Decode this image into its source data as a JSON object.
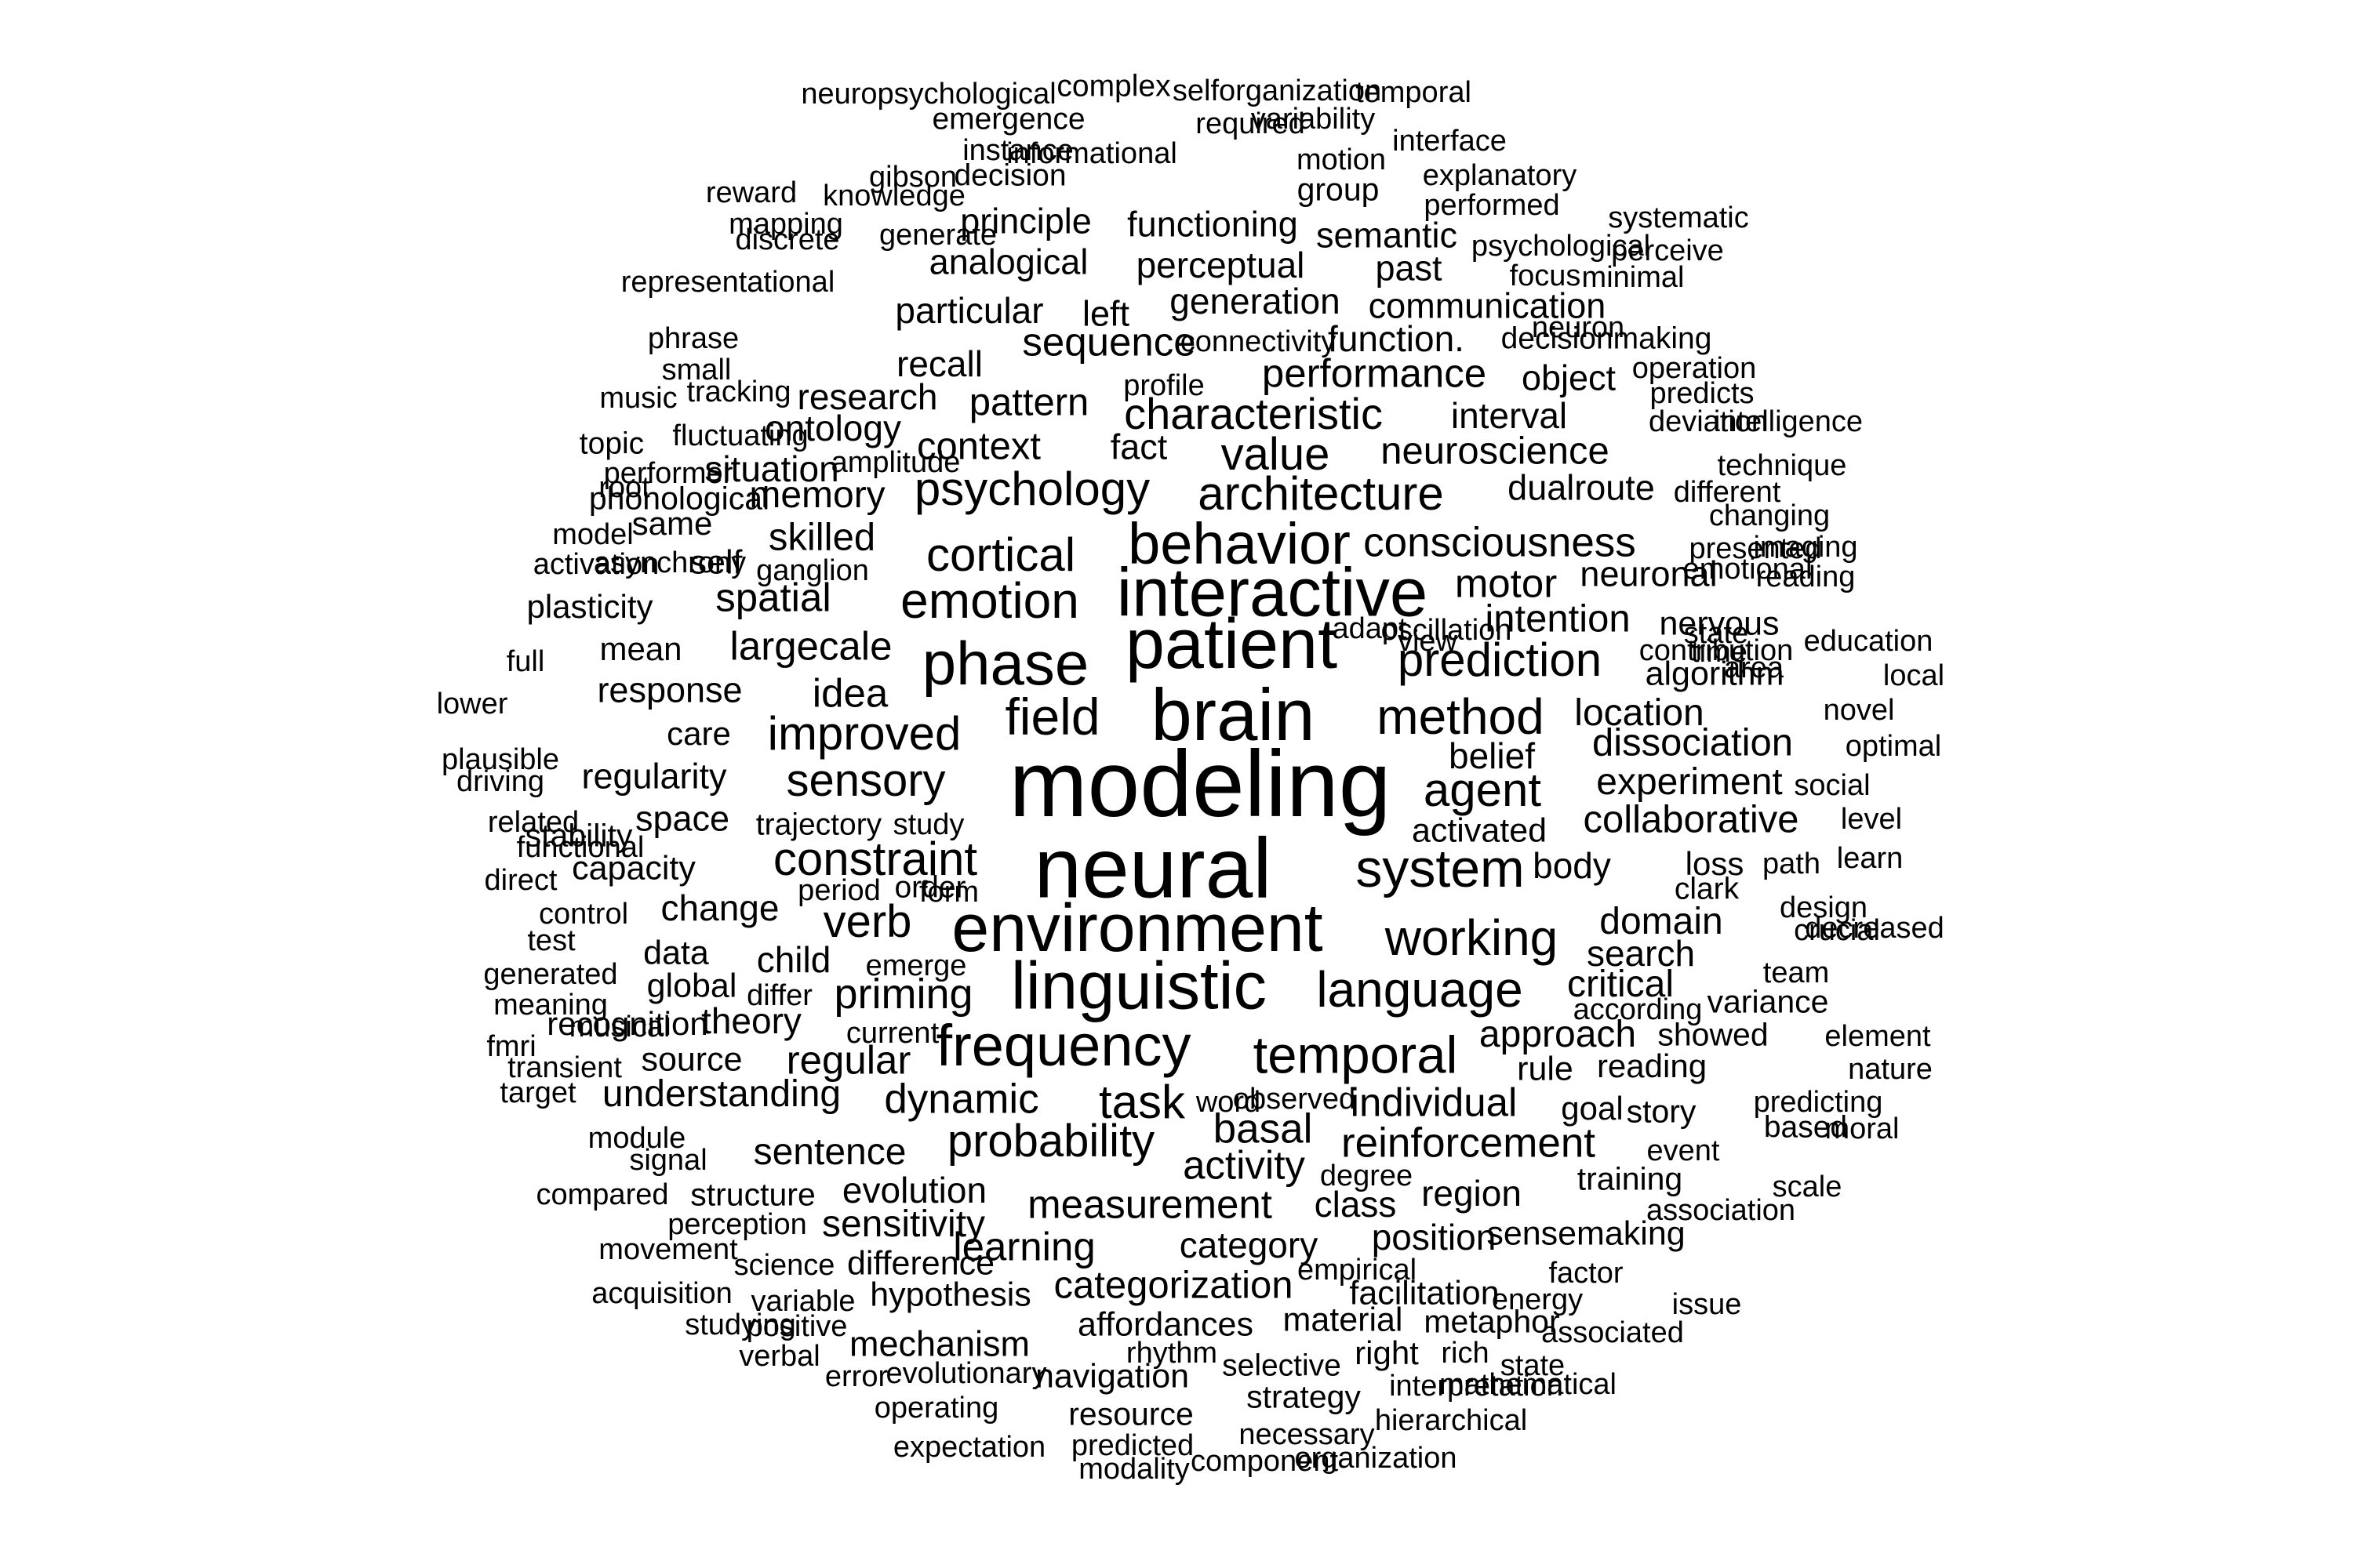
{
  "title": "word cloud",
  "text_color": "#000000",
  "background": "#ffffff",
  "words": [
    {
      "t": "modeling",
      "w": 1.0
    },
    {
      "t": "neural",
      "w": 0.92
    },
    {
      "t": "brain",
      "w": 0.8
    },
    {
      "t": "patient",
      "w": 0.76
    },
    {
      "t": "interactive",
      "w": 0.74
    },
    {
      "t": "environment",
      "w": 0.73
    },
    {
      "t": "linguistic",
      "w": 0.72
    },
    {
      "t": "behavior",
      "w": 0.62
    },
    {
      "t": "phase",
      "w": 0.66
    },
    {
      "t": "frequency",
      "w": 0.62
    },
    {
      "t": "temporal",
      "w": 0.55
    },
    {
      "t": "system",
      "w": 0.56
    },
    {
      "t": "working",
      "w": 0.52
    },
    {
      "t": "language",
      "w": 0.52
    },
    {
      "t": "method",
      "w": 0.52
    },
    {
      "t": "agent",
      "w": 0.48
    },
    {
      "t": "field",
      "w": 0.54
    },
    {
      "t": "improved",
      "w": 0.48
    },
    {
      "t": "emotion",
      "w": 0.52
    },
    {
      "t": "cortical",
      "w": 0.48
    },
    {
      "t": "psychology",
      "w": 0.48
    },
    {
      "t": "architecture",
      "w": 0.48
    },
    {
      "t": "value",
      "w": 0.46
    },
    {
      "t": "prediction",
      "w": 0.48
    },
    {
      "t": "task",
      "w": 0.48
    },
    {
      "t": "probability",
      "w": 0.46
    },
    {
      "t": "constraint",
      "w": 0.48
    },
    {
      "t": "sensory",
      "w": 0.46
    },
    {
      "t": "verb",
      "w": 0.46
    },
    {
      "t": "priming",
      "w": 0.42
    },
    {
      "t": "characteristic",
      "w": 0.44
    },
    {
      "t": "consciousness",
      "w": 0.4
    },
    {
      "t": "measurement",
      "w": 0.38
    },
    {
      "t": "basal",
      "w": 0.4
    },
    {
      "t": "reinforcement",
      "w": 0.4
    },
    {
      "t": "dynamic",
      "w": 0.4
    },
    {
      "t": "individual",
      "w": 0.38
    },
    {
      "t": "activity",
      "w": 0.38
    },
    {
      "t": "performance",
      "w": 0.38
    },
    {
      "t": "sequence",
      "w": 0.38
    },
    {
      "t": "largecale",
      "w": 0.38
    },
    {
      "t": "spatial",
      "w": 0.38
    },
    {
      "t": "idea",
      "w": 0.38
    },
    {
      "t": "regular",
      "w": 0.38
    },
    {
      "t": "learning",
      "w": 0.38
    },
    {
      "t": "categorization",
      "w": 0.36
    },
    {
      "t": "motor",
      "w": 0.38
    },
    {
      "t": "intention",
      "w": 0.36
    },
    {
      "t": "dissociation",
      "w": 0.36
    },
    {
      "t": "experiment",
      "w": 0.34
    },
    {
      "t": "collaborative",
      "w": 0.36
    },
    {
      "t": "skilled",
      "w": 0.36
    },
    {
      "t": "memory",
      "w": 0.34
    },
    {
      "t": "context",
      "w": 0.36
    },
    {
      "t": "pattern",
      "w": 0.36
    },
    {
      "t": "neuroscience",
      "w": 0.36
    },
    {
      "t": "domain",
      "w": 0.34
    },
    {
      "t": "approach",
      "w": 0.34
    },
    {
      "t": "location",
      "w": 0.34
    },
    {
      "t": "belief",
      "w": 0.32
    },
    {
      "t": "body",
      "w": 0.32
    },
    {
      "t": "search",
      "w": 0.32
    },
    {
      "t": "critical",
      "w": 0.34
    },
    {
      "t": "understanding",
      "w": 0.34
    },
    {
      "t": "sentence",
      "w": 0.34
    },
    {
      "t": "evolution",
      "w": 0.32
    },
    {
      "t": "sensitivity",
      "w": 0.34
    },
    {
      "t": "category",
      "w": 0.32
    },
    {
      "t": "position",
      "w": 0.32
    },
    {
      "t": "region",
      "w": 0.32
    },
    {
      "t": "class",
      "w": 0.32
    },
    {
      "t": "change",
      "w": 0.32
    },
    {
      "t": "child",
      "w": 0.32
    },
    {
      "t": "theory",
      "w": 0.32
    },
    {
      "t": "situation",
      "w": 0.32
    },
    {
      "t": "ontology",
      "w": 0.32
    },
    {
      "t": "research",
      "w": 0.32
    },
    {
      "t": "recall",
      "w": 0.32
    },
    {
      "t": "particular",
      "w": 0.32
    },
    {
      "t": "generation",
      "w": 0.32
    },
    {
      "t": "function.",
      "w": 0.32
    },
    {
      "t": "perceptual",
      "w": 0.32
    },
    {
      "t": "analogical",
      "w": 0.3
    },
    {
      "t": "principle",
      "w": 0.3
    },
    {
      "t": "functioning",
      "w": 0.3
    },
    {
      "t": "semantic",
      "w": 0.3
    },
    {
      "t": "past",
      "w": 0.3
    },
    {
      "t": "communication",
      "w": 0.3
    },
    {
      "t": "left",
      "w": 0.3
    },
    {
      "t": "fact",
      "w": 0.3
    },
    {
      "t": "interval",
      "w": 0.32
    },
    {
      "t": "dualroute",
      "w": 0.3
    },
    {
      "t": "neuronal",
      "w": 0.3
    },
    {
      "t": "nervous",
      "w": 0.28
    },
    {
      "t": "algorithm",
      "w": 0.28
    },
    {
      "t": "object",
      "w": 0.3
    },
    {
      "t": "activated",
      "w": 0.28
    },
    {
      "t": "regularity",
      "w": 0.3
    },
    {
      "t": "response",
      "w": 0.3
    },
    {
      "t": "space",
      "w": 0.3
    },
    {
      "t": "capacity",
      "w": 0.28
    },
    {
      "t": "data",
      "w": 0.28
    },
    {
      "t": "global",
      "w": 0.28
    },
    {
      "t": "source",
      "w": 0.28
    },
    {
      "t": "mechanism",
      "w": 0.3
    },
    {
      "t": "difference",
      "w": 0.28
    },
    {
      "t": "hypothesis",
      "w": 0.28
    },
    {
      "t": "navigation",
      "w": 0.28
    },
    {
      "t": "affordances",
      "w": 0.28
    },
    {
      "t": "material",
      "w": 0.28
    },
    {
      "t": "facilitation",
      "w": 0.28
    },
    {
      "t": "sensemaking",
      "w": 0.28
    },
    {
      "t": "rule",
      "w": 0.28
    },
    {
      "t": "reading",
      "w": 0.26
    },
    {
      "t": "goal",
      "w": 0.26
    },
    {
      "t": "story",
      "w": 0.24
    },
    {
      "t": "showed",
      "w": 0.24
    },
    {
      "t": "variance",
      "w": 0.24
    },
    {
      "t": "loss",
      "w": 0.26
    },
    {
      "t": "clark",
      "w": 0.22
    },
    {
      "t": "mean",
      "w": 0.26
    },
    {
      "t": "self",
      "w": 0.28
    },
    {
      "t": "same",
      "w": 0.26
    },
    {
      "t": "care",
      "w": 0.26
    },
    {
      "t": "recognition",
      "w": 0.26
    },
    {
      "t": "plasticity",
      "w": 0.26
    },
    {
      "t": "stability",
      "w": 0.24
    },
    {
      "t": "trajectory",
      "w": 0.22
    },
    {
      "t": "structure",
      "w": 0.24
    },
    {
      "t": "selective",
      "w": 0.22
    },
    {
      "t": "metaphor",
      "w": 0.24
    },
    {
      "t": "right",
      "w": 0.26
    },
    {
      "t": "strategy",
      "w": 0.24
    },
    {
      "t": "resource",
      "w": 0.24
    },
    {
      "t": "training",
      "w": 0.24
    },
    {
      "t": "phonological",
      "w": 0.24
    },
    {
      "t": "group",
      "w": 0.24
    },
    {
      "t": "decision",
      "w": 0.22
    },
    {
      "t": "decisionmaking",
      "w": 0.22
    },
    {
      "t": "emergence",
      "w": 0.22
    },
    {
      "t": "complex",
      "w": 0.22
    },
    {
      "t": "neuropsychological",
      "w": 0.2
    },
    {
      "t": "selforganization",
      "w": 0.2
    },
    {
      "t": "temporal",
      "w": 0.2
    },
    {
      "t": "required",
      "w": 0.2
    },
    {
      "t": "variability",
      "w": 0.2
    },
    {
      "t": "instance",
      "w": 0.2
    },
    {
      "t": "informational",
      "w": 0.2
    },
    {
      "t": "motion",
      "w": 0.2
    },
    {
      "t": "interface",
      "w": 0.2
    },
    {
      "t": "gibson",
      "w": 0.2
    },
    {
      "t": "explanatory",
      "w": 0.2
    },
    {
      "t": "reward",
      "w": 0.2
    },
    {
      "t": "knowledge",
      "w": 0.2
    },
    {
      "t": "performed",
      "w": 0.2
    },
    {
      "t": "systematic",
      "w": 0.2
    },
    {
      "t": "mapping",
      "w": 0.2
    },
    {
      "t": "generate",
      "w": 0.2
    },
    {
      "t": "psychological",
      "w": 0.2
    },
    {
      "t": "perceive",
      "w": 0.2
    },
    {
      "t": "discrete",
      "w": 0.2
    },
    {
      "t": "focus",
      "w": 0.2
    },
    {
      "t": "minimal",
      "w": 0.2
    },
    {
      "t": "representational",
      "w": 0.2
    },
    {
      "t": "neuron",
      "w": 0.2
    },
    {
      "t": "connectivity",
      "w": 0.2
    },
    {
      "t": "phrase",
      "w": 0.2
    },
    {
      "t": "small",
      "w": 0.2
    },
    {
      "t": "operation",
      "w": 0.2
    },
    {
      "t": "profile",
      "w": 0.2
    },
    {
      "t": "predicts",
      "w": 0.2
    },
    {
      "t": "tracking",
      "w": 0.2
    },
    {
      "t": "music",
      "w": 0.2
    },
    {
      "t": "fluctuating",
      "w": 0.2
    },
    {
      "t": "deviation",
      "w": 0.2
    },
    {
      "t": "intelligence",
      "w": 0.2
    },
    {
      "t": "topic",
      "w": 0.22
    },
    {
      "t": "performer",
      "w": 0.2
    },
    {
      "t": "amplitude",
      "w": 0.2
    },
    {
      "t": "technique",
      "w": 0.2
    },
    {
      "t": "root",
      "w": 0.2
    },
    {
      "t": "different",
      "w": 0.2
    },
    {
      "t": "changing",
      "w": 0.2
    },
    {
      "t": "model",
      "w": 0.2
    },
    {
      "t": "presented",
      "w": 0.2
    },
    {
      "t": "ganglion",
      "w": 0.2
    },
    {
      "t": "reading",
      "w": 0.2
    },
    {
      "t": "emotional",
      "w": 0.2
    },
    {
      "t": "activation",
      "w": 0.2
    },
    {
      "t": "asynchrony",
      "w": 0.2
    },
    {
      "t": "imaging",
      "w": 0.2
    },
    {
      "t": "adapt",
      "w": 0.2
    },
    {
      "t": "state",
      "w": 0.2
    },
    {
      "t": "contribution",
      "w": 0.2
    },
    {
      "t": "order",
      "w": 0.22
    },
    {
      "t": "oscillation",
      "w": 0.2
    },
    {
      "t": "view",
      "w": 0.2
    },
    {
      "t": "education",
      "w": 0.2
    },
    {
      "t": "full",
      "w": 0.2
    },
    {
      "t": "area",
      "w": 0.2
    },
    {
      "t": "time",
      "w": 0.2
    },
    {
      "t": "local",
      "w": 0.2
    },
    {
      "t": "lower",
      "w": 0.2
    },
    {
      "t": "novel",
      "w": 0.2
    },
    {
      "t": "optimal",
      "w": 0.2
    },
    {
      "t": "plausible",
      "w": 0.2
    },
    {
      "t": "driving",
      "w": 0.2
    },
    {
      "t": "social",
      "w": 0.2
    },
    {
      "t": "related",
      "w": 0.2
    },
    {
      "t": "study",
      "w": 0.2
    },
    {
      "t": "level",
      "w": 0.2
    },
    {
      "t": "functional",
      "w": 0.2
    },
    {
      "t": "direct",
      "w": 0.2
    },
    {
      "t": "period",
      "w": 0.2
    },
    {
      "t": "form",
      "w": 0.2
    },
    {
      "t": "path",
      "w": 0.2
    },
    {
      "t": "learn",
      "w": 0.2
    },
    {
      "t": "control",
      "w": 0.2
    },
    {
      "t": "design",
      "w": 0.2
    },
    {
      "t": "test",
      "w": 0.2
    },
    {
      "t": "crucial",
      "w": 0.2
    },
    {
      "t": "decreased",
      "w": 0.2
    },
    {
      "t": "generated",
      "w": 0.2
    },
    {
      "t": "emerge",
      "w": 0.2
    },
    {
      "t": "team",
      "w": 0.2
    },
    {
      "t": "meaning",
      "w": 0.2
    },
    {
      "t": "differ",
      "w": 0.2
    },
    {
      "t": "according",
      "w": 0.2
    },
    {
      "t": "musical",
      "w": 0.2
    },
    {
      "t": "fmri",
      "w": 0.2
    },
    {
      "t": "current",
      "w": 0.2
    },
    {
      "t": "element",
      "w": 0.2
    },
    {
      "t": "transient",
      "w": 0.2
    },
    {
      "t": "nature",
      "w": 0.2
    },
    {
      "t": "target",
      "w": 0.2
    },
    {
      "t": "observed",
      "w": 0.2
    },
    {
      "t": "predicting",
      "w": 0.2
    },
    {
      "t": "word",
      "w": 0.2
    },
    {
      "t": "based",
      "w": 0.22
    },
    {
      "t": "moral",
      "w": 0.2
    },
    {
      "t": "module",
      "w": 0.2
    },
    {
      "t": "signal",
      "w": 0.2
    },
    {
      "t": "degree",
      "w": 0.2
    },
    {
      "t": "event",
      "w": 0.2
    },
    {
      "t": "compared",
      "w": 0.2
    },
    {
      "t": "scale",
      "w": 0.2
    },
    {
      "t": "perception",
      "w": 0.2
    },
    {
      "t": "association",
      "w": 0.2
    },
    {
      "t": "movement",
      "w": 0.2
    },
    {
      "t": "science",
      "w": 0.2
    },
    {
      "t": "empirical",
      "w": 0.2
    },
    {
      "t": "factor",
      "w": 0.2
    },
    {
      "t": "acquisition",
      "w": 0.2
    },
    {
      "t": "variable",
      "w": 0.2
    },
    {
      "t": "energy",
      "w": 0.2
    },
    {
      "t": "issue",
      "w": 0.2
    },
    {
      "t": "studying",
      "w": 0.2
    },
    {
      "t": "positive",
      "w": 0.2
    },
    {
      "t": "rhythm",
      "w": 0.2
    },
    {
      "t": "associated",
      "w": 0.2
    },
    {
      "t": "verbal",
      "w": 0.2
    },
    {
      "t": "rich",
      "w": 0.2
    },
    {
      "t": "state",
      "w": 0.2
    },
    {
      "t": "mathematical",
      "w": 0.2
    },
    {
      "t": "error",
      "w": 0.2
    },
    {
      "t": "evolutionary",
      "w": 0.2
    },
    {
      "t": "interpretation",
      "w": 0.2
    },
    {
      "t": "operating",
      "w": 0.2
    },
    {
      "t": "hierarchical",
      "w": 0.2
    },
    {
      "t": "necessary",
      "w": 0.2
    },
    {
      "t": "expectation",
      "w": 0.2
    },
    {
      "t": "predicted",
      "w": 0.2
    },
    {
      "t": "organization",
      "w": 0.2
    },
    {
      "t": "modality",
      "w": 0.2
    },
    {
      "t": "component",
      "w": 0.2
    }
  ]
}
